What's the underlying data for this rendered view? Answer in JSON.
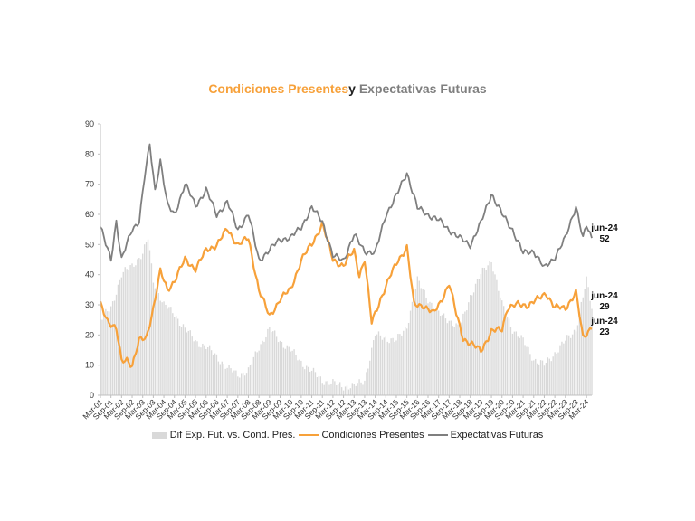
{
  "chart_data": {
    "type": "line",
    "title_parts": [
      "Condiciones Presentes",
      "y",
      "Expectativas Futuras"
    ],
    "title_colors": [
      "#f7a13a",
      "#222222",
      "#7f7f7f"
    ],
    "ylim": [
      0,
      90
    ],
    "yticks": [
      0,
      10,
      20,
      30,
      40,
      50,
      60,
      70,
      80,
      90
    ],
    "x_ticks": [
      "Mar-01",
      "Sep-01",
      "Mar-02",
      "Sep-02",
      "Mar-03",
      "Sep-03",
      "Mar-04",
      "Sep-04",
      "Mar-05",
      "Sep-05",
      "Mar-06",
      "Sep-06",
      "Mar-07",
      "Sep-07",
      "Mar-08",
      "Sep-08",
      "Mar-09",
      "Sep-09",
      "Mar-10",
      "Sep-10",
      "Mar-11",
      "Sep-11",
      "Mar-12",
      "Sep-12",
      "Mar-13",
      "Sep-13",
      "Mar-14",
      "Sep-14",
      "Mar-15",
      "Sep-15",
      "Mar-16",
      "Sep-16",
      "Mar-17",
      "Sep-17",
      "Mar-18",
      "Sep-18",
      "Mar-19",
      "Sep-19",
      "Mar-20",
      "Sep-20",
      "Mar-21",
      "Sep-21",
      "Mar-22",
      "Sep-22",
      "Mar-23",
      "Sep-23",
      "Mar-24"
    ],
    "x_start": "2001-03",
    "x_end": "2024-06",
    "series": [
      {
        "name": "Dif Exp. Fut. vs. Cond. Pres.",
        "kind": "bar",
        "color": "#d9d9d9",
        "points": [
          [
            "2001-03",
            25
          ],
          [
            "2001-09",
            29
          ],
          [
            "2002-03",
            40
          ],
          [
            "2002-09",
            43
          ],
          [
            "2003-03",
            47
          ],
          [
            "2003-06",
            52
          ],
          [
            "2003-09",
            38
          ],
          [
            "2004-03",
            30
          ],
          [
            "2004-09",
            27
          ],
          [
            "2005-03",
            22
          ],
          [
            "2005-09",
            18
          ],
          [
            "2006-03",
            16
          ],
          [
            "2006-09",
            13
          ],
          [
            "2007-03",
            9
          ],
          [
            "2007-09",
            7
          ],
          [
            "2008-03",
            8
          ],
          [
            "2008-09",
            16
          ],
          [
            "2009-03",
            22
          ],
          [
            "2009-09",
            18
          ],
          [
            "2010-03",
            15
          ],
          [
            "2010-09",
            11
          ],
          [
            "2011-03",
            8
          ],
          [
            "2011-09",
            5
          ],
          [
            "2012-03",
            4
          ],
          [
            "2012-09",
            3
          ],
          [
            "2013-03",
            3
          ],
          [
            "2013-09",
            5
          ],
          [
            "2014-03",
            20
          ],
          [
            "2014-09",
            19
          ],
          [
            "2015-03",
            18
          ],
          [
            "2015-09",
            23
          ],
          [
            "2016-03",
            38
          ],
          [
            "2016-09",
            32
          ],
          [
            "2017-03",
            27
          ],
          [
            "2017-09",
            25
          ],
          [
            "2018-03",
            22
          ],
          [
            "2018-09",
            33
          ],
          [
            "2019-03",
            40
          ],
          [
            "2019-09",
            45
          ],
          [
            "2020-03",
            30
          ],
          [
            "2020-09",
            22
          ],
          [
            "2021-03",
            18
          ],
          [
            "2021-09",
            12
          ],
          [
            "2022-03",
            10
          ],
          [
            "2022-09",
            14
          ],
          [
            "2023-03",
            18
          ],
          [
            "2023-09",
            22
          ],
          [
            "2024-03",
            38
          ],
          [
            "2024-06",
            29
          ]
        ]
      },
      {
        "name": "Condiciones Presentes",
        "kind": "line",
        "color": "#f7a13a",
        "points": [
          [
            "2001-03",
            30
          ],
          [
            "2001-07",
            25
          ],
          [
            "2001-12",
            22
          ],
          [
            "2002-03",
            11
          ],
          [
            "2002-06",
            12
          ],
          [
            "2002-09",
            10
          ],
          [
            "2003-01",
            18
          ],
          [
            "2003-05",
            19
          ],
          [
            "2003-09",
            29
          ],
          [
            "2004-01",
            41
          ],
          [
            "2004-05",
            35
          ],
          [
            "2004-09",
            38
          ],
          [
            "2005-03",
            45
          ],
          [
            "2005-09",
            42
          ],
          [
            "2006-03",
            48
          ],
          [
            "2006-09",
            50
          ],
          [
            "2007-03",
            55
          ],
          [
            "2007-09",
            50
          ],
          [
            "2008-03",
            52
          ],
          [
            "2008-09",
            35
          ],
          [
            "2009-03",
            26
          ],
          [
            "2009-09",
            32
          ],
          [
            "2010-03",
            35
          ],
          [
            "2010-09",
            45
          ],
          [
            "2011-03",
            50
          ],
          [
            "2011-09",
            57
          ],
          [
            "2012-03",
            45
          ],
          [
            "2012-09",
            43
          ],
          [
            "2013-03",
            48
          ],
          [
            "2013-06",
            40
          ],
          [
            "2013-09",
            45
          ],
          [
            "2014-01",
            24
          ],
          [
            "2014-06",
            32
          ],
          [
            "2014-12",
            40
          ],
          [
            "2015-04",
            45
          ],
          [
            "2015-09",
            49
          ],
          [
            "2016-01",
            30
          ],
          [
            "2016-06",
            30
          ],
          [
            "2016-12",
            27
          ],
          [
            "2017-04",
            31
          ],
          [
            "2017-09",
            37
          ],
          [
            "2018-01",
            27
          ],
          [
            "2018-05",
            19
          ],
          [
            "2018-09",
            17
          ],
          [
            "2019-03",
            15
          ],
          [
            "2019-09",
            21
          ],
          [
            "2020-03",
            22
          ],
          [
            "2020-06",
            29
          ],
          [
            "2020-12",
            30
          ],
          [
            "2021-06",
            30
          ],
          [
            "2021-12",
            32
          ],
          [
            "2022-04",
            34
          ],
          [
            "2022-09",
            29
          ],
          [
            "2023-03",
            29
          ],
          [
            "2023-09",
            34
          ],
          [
            "2024-01",
            19
          ],
          [
            "2024-06",
            23
          ]
        ]
      },
      {
        "name": "Expectativas Futuras",
        "kind": "line",
        "color": "#7f7f7f",
        "points": [
          [
            "2001-03",
            56
          ],
          [
            "2001-06",
            50
          ],
          [
            "2001-09",
            45
          ],
          [
            "2001-12",
            58
          ],
          [
            "2002-03",
            45
          ],
          [
            "2002-09",
            55
          ],
          [
            "2003-01",
            58
          ],
          [
            "2003-04",
            72
          ],
          [
            "2003-07",
            83
          ],
          [
            "2003-10",
            68
          ],
          [
            "2004-01",
            78
          ],
          [
            "2004-05",
            63
          ],
          [
            "2004-09",
            60
          ],
          [
            "2005-03",
            70
          ],
          [
            "2005-09",
            63
          ],
          [
            "2006-03",
            68
          ],
          [
            "2006-09",
            60
          ],
          [
            "2007-03",
            64
          ],
          [
            "2007-09",
            55
          ],
          [
            "2008-03",
            60
          ],
          [
            "2008-09",
            45
          ],
          [
            "2009-03",
            48
          ],
          [
            "2009-09",
            52
          ],
          [
            "2010-03",
            52
          ],
          [
            "2010-09",
            56
          ],
          [
            "2011-03",
            62
          ],
          [
            "2011-09",
            58
          ],
          [
            "2012-03",
            46
          ],
          [
            "2012-09",
            45
          ],
          [
            "2013-03",
            53
          ],
          [
            "2013-09",
            48
          ],
          [
            "2014-03",
            47
          ],
          [
            "2014-09",
            60
          ],
          [
            "2015-03",
            66
          ],
          [
            "2015-09",
            74
          ],
          [
            "2016-03",
            62
          ],
          [
            "2016-09",
            60
          ],
          [
            "2017-03",
            58
          ],
          [
            "2017-09",
            55
          ],
          [
            "2018-03",
            52
          ],
          [
            "2018-09",
            50
          ],
          [
            "2019-03",
            57
          ],
          [
            "2019-09",
            67
          ],
          [
            "2020-03",
            60
          ],
          [
            "2020-09",
            55
          ],
          [
            "2021-03",
            47
          ],
          [
            "2021-09",
            48
          ],
          [
            "2022-03",
            42
          ],
          [
            "2022-09",
            46
          ],
          [
            "2023-03",
            52
          ],
          [
            "2023-09",
            63
          ],
          [
            "2024-01",
            52
          ],
          [
            "2024-03",
            56
          ],
          [
            "2024-06",
            52
          ]
        ]
      }
    ],
    "end_labels": [
      {
        "date": "jun-24",
        "value": 52
      },
      {
        "date": "jun-24",
        "value": 29
      },
      {
        "date": "jun-24",
        "value": 23
      }
    ],
    "legend": [
      "Dif Exp. Fut. vs. Cond. Pres.",
      "Condiciones Presentes",
      "Expectativas Futuras"
    ],
    "legend_position": "bottom",
    "grid": false
  }
}
